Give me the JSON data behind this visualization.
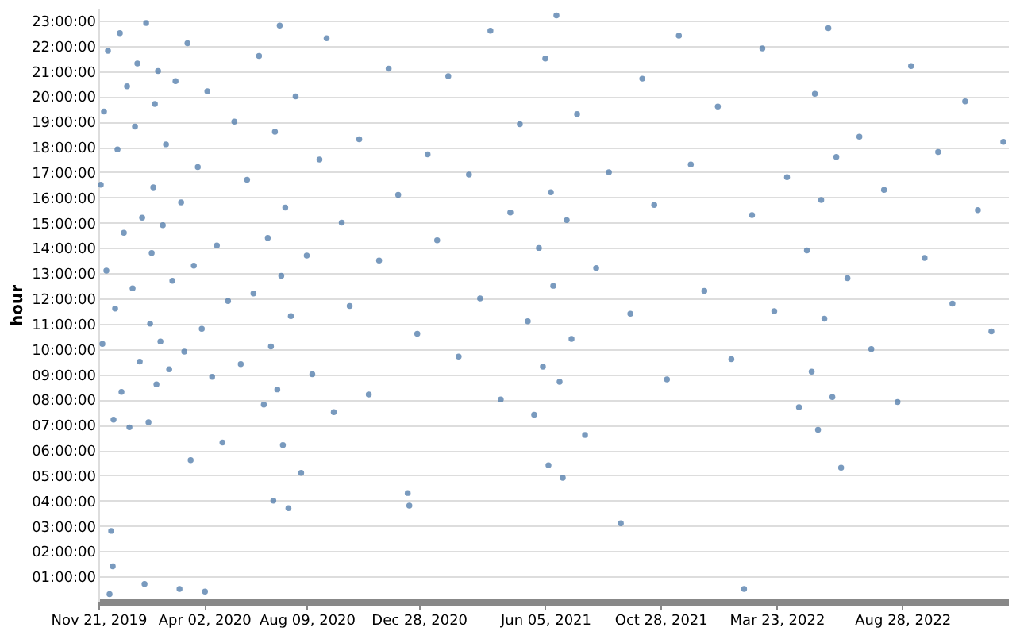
{
  "chart_data": {
    "type": "scatter",
    "ylabel": "hour",
    "color": "#4c78a8",
    "marker": "circle",
    "grid": "y",
    "xlim": [
      "2019-11-21",
      "2023-01-08"
    ],
    "xticks": [
      {
        "value": "2019-11-21",
        "label": "Nov 21, 2019"
      },
      {
        "value": "2020-04-02",
        "label": "Apr 02, 2020"
      },
      {
        "value": "2020-08-09",
        "label": "Aug 09, 2020"
      },
      {
        "value": "2020-12-28",
        "label": "Dec 28, 2020"
      },
      {
        "value": "2021-06-05",
        "label": "Jun 05, 2021"
      },
      {
        "value": "2021-10-28",
        "label": "Oct 28, 2021"
      },
      {
        "value": "2022-03-23",
        "label": "Mar 23, 2022"
      },
      {
        "value": "2022-08-28",
        "label": "Aug 28, 2022"
      }
    ],
    "ylim": [
      0,
      23.5
    ],
    "yticks": [
      {
        "value": 1,
        "label": "01:00:00"
      },
      {
        "value": 2,
        "label": "02:00:00"
      },
      {
        "value": 3,
        "label": "03:00:00"
      },
      {
        "value": 4,
        "label": "04:00:00"
      },
      {
        "value": 5,
        "label": "05:00:00"
      },
      {
        "value": 6,
        "label": "06:00:00"
      },
      {
        "value": 7,
        "label": "07:00:00"
      },
      {
        "value": 8,
        "label": "08:00:00"
      },
      {
        "value": 9,
        "label": "09:00:00"
      },
      {
        "value": 10,
        "label": "10:00:00"
      },
      {
        "value": 11,
        "label": "11:00:00"
      },
      {
        "value": 12,
        "label": "12:00:00"
      },
      {
        "value": 13,
        "label": "13:00:00"
      },
      {
        "value": 14,
        "label": "14:00:00"
      },
      {
        "value": 15,
        "label": "15:00:00"
      },
      {
        "value": 16,
        "label": "16:00:00"
      },
      {
        "value": 17,
        "label": "17:00:00"
      },
      {
        "value": 18,
        "label": "18:00:00"
      },
      {
        "value": 19,
        "label": "19:00:00"
      },
      {
        "value": 20,
        "label": "20:00:00"
      },
      {
        "value": 21,
        "label": "21:00:00"
      },
      {
        "value": 22,
        "label": "22:00:00"
      },
      {
        "value": 23,
        "label": "23:00:00"
      }
    ],
    "x": [
      "2019-11-24",
      "2019-11-26",
      "2019-11-28",
      "2019-12-01",
      "2019-12-03",
      "2019-12-05",
      "2019-12-07",
      "2019-12-09",
      "2019-12-10",
      "2019-12-12",
      "2019-12-15",
      "2019-12-18",
      "2019-12-20",
      "2019-12-23",
      "2019-12-27",
      "2019-12-30",
      "2020-01-03",
      "2020-01-06",
      "2020-01-09",
      "2020-01-12",
      "2020-01-15",
      "2020-01-18",
      "2020-01-20",
      "2020-01-23",
      "2020-01-25",
      "2020-01-27",
      "2020-01-29",
      "2020-01-31",
      "2020-02-02",
      "2020-02-04",
      "2020-02-07",
      "2020-02-10",
      "2020-02-14",
      "2020-02-18",
      "2020-02-22",
      "2020-02-26",
      "2020-03-02",
      "2020-03-04",
      "2020-03-08",
      "2020-03-12",
      "2020-03-16",
      "2020-03-20",
      "2020-03-25",
      "2020-03-30",
      "2020-04-03",
      "2020-04-06",
      "2020-04-12",
      "2020-04-18",
      "2020-04-25",
      "2020-05-02",
      "2020-05-10",
      "2020-05-18",
      "2020-05-26",
      "2020-06-03",
      "2020-06-10",
      "2020-06-16",
      "2020-06-21",
      "2020-06-25",
      "2020-06-28",
      "2020-06-30",
      "2020-07-03",
      "2020-07-06",
      "2020-07-08",
      "2020-07-10",
      "2020-07-13",
      "2020-07-17",
      "2020-07-20",
      "2020-07-26",
      "2020-08-02",
      "2020-08-09",
      "2020-08-16",
      "2020-08-25",
      "2020-09-03",
      "2020-09-12",
      "2020-09-22",
      "2020-10-02",
      "2020-10-14",
      "2020-10-26",
      "2020-11-08",
      "2020-11-20",
      "2020-12-02",
      "2020-12-14",
      "2020-12-16",
      "2020-12-26",
      "2021-01-08",
      "2021-01-20",
      "2021-02-03",
      "2021-02-16",
      "2021-03-01",
      "2021-03-15",
      "2021-03-28",
      "2021-04-10",
      "2021-04-22",
      "2021-05-04",
      "2021-05-14",
      "2021-05-22",
      "2021-05-28",
      "2021-06-02",
      "2021-06-05",
      "2021-06-09",
      "2021-06-12",
      "2021-06-15",
      "2021-06-19",
      "2021-06-23",
      "2021-06-27",
      "2021-07-02",
      "2021-07-08",
      "2021-07-15",
      "2021-07-25",
      "2021-08-08",
      "2021-08-24",
      "2021-09-08",
      "2021-09-20",
      "2021-10-05",
      "2021-10-20",
      "2021-11-05",
      "2021-11-20",
      "2021-12-05",
      "2021-12-22",
      "2022-01-08",
      "2022-01-25",
      "2022-02-10",
      "2022-02-20",
      "2022-03-05",
      "2022-03-20",
      "2022-04-05",
      "2022-04-20",
      "2022-04-30",
      "2022-05-06",
      "2022-05-10",
      "2022-05-14",
      "2022-05-18",
      "2022-05-22",
      "2022-05-27",
      "2022-06-01",
      "2022-06-06",
      "2022-06-12",
      "2022-06-20",
      "2022-07-05",
      "2022-07-20",
      "2022-08-05",
      "2022-08-22",
      "2022-09-08",
      "2022-09-25",
      "2022-10-12",
      "2022-10-30",
      "2022-11-15",
      "2022-12-01",
      "2022-12-18",
      "2023-01-02"
    ],
    "values": [
      16.5,
      10.2,
      19.4,
      13.1,
      21.8,
      0.3,
      2.8,
      1.4,
      7.2,
      11.6,
      17.9,
      22.5,
      8.3,
      14.6,
      20.4,
      6.9,
      12.4,
      18.8,
      21.3,
      9.5,
      15.2,
      0.7,
      22.9,
      7.1,
      11.0,
      13.8,
      16.4,
      19.7,
      8.6,
      21.0,
      10.3,
      14.9,
      18.1,
      9.2,
      12.7,
      20.6,
      0.5,
      15.8,
      9.9,
      22.1,
      5.6,
      13.3,
      17.2,
      10.8,
      0.4,
      20.2,
      8.9,
      14.1,
      6.3,
      11.9,
      19.0,
      9.4,
      16.7,
      12.2,
      21.6,
      7.8,
      14.4,
      10.1,
      4.0,
      18.6,
      8.4,
      22.8,
      12.9,
      6.2,
      15.6,
      3.7,
      11.3,
      20.0,
      5.1,
      13.7,
      9.0,
      17.5,
      22.3,
      7.5,
      15.0,
      11.7,
      18.3,
      8.2,
      13.5,
      21.1,
      16.1,
      4.3,
      3.8,
      10.6,
      17.7,
      14.3,
      20.8,
      9.7,
      16.9,
      12.0,
      22.6,
      8.0,
      15.4,
      18.9,
      11.1,
      7.4,
      14.0,
      9.3,
      21.5,
      5.4,
      16.2,
      12.5,
      23.2,
      8.7,
      4.9,
      15.1,
      10.4,
      19.3,
      6.6,
      13.2,
      17.0,
      3.1,
      11.4,
      20.7,
      15.7,
      8.8,
      22.4,
      17.3,
      12.3,
      19.6,
      9.6,
      0.5,
      15.3,
      21.9,
      11.5,
      16.8,
      7.7,
      13.9,
      9.1,
      20.1,
      6.8,
      15.9,
      11.2,
      22.7,
      8.1,
      17.6,
      5.3,
      12.8,
      18.4,
      10.0,
      16.3,
      7.9,
      21.2,
      13.6,
      17.8,
      11.8,
      19.8,
      15.5,
      10.7,
      18.2
    ]
  }
}
